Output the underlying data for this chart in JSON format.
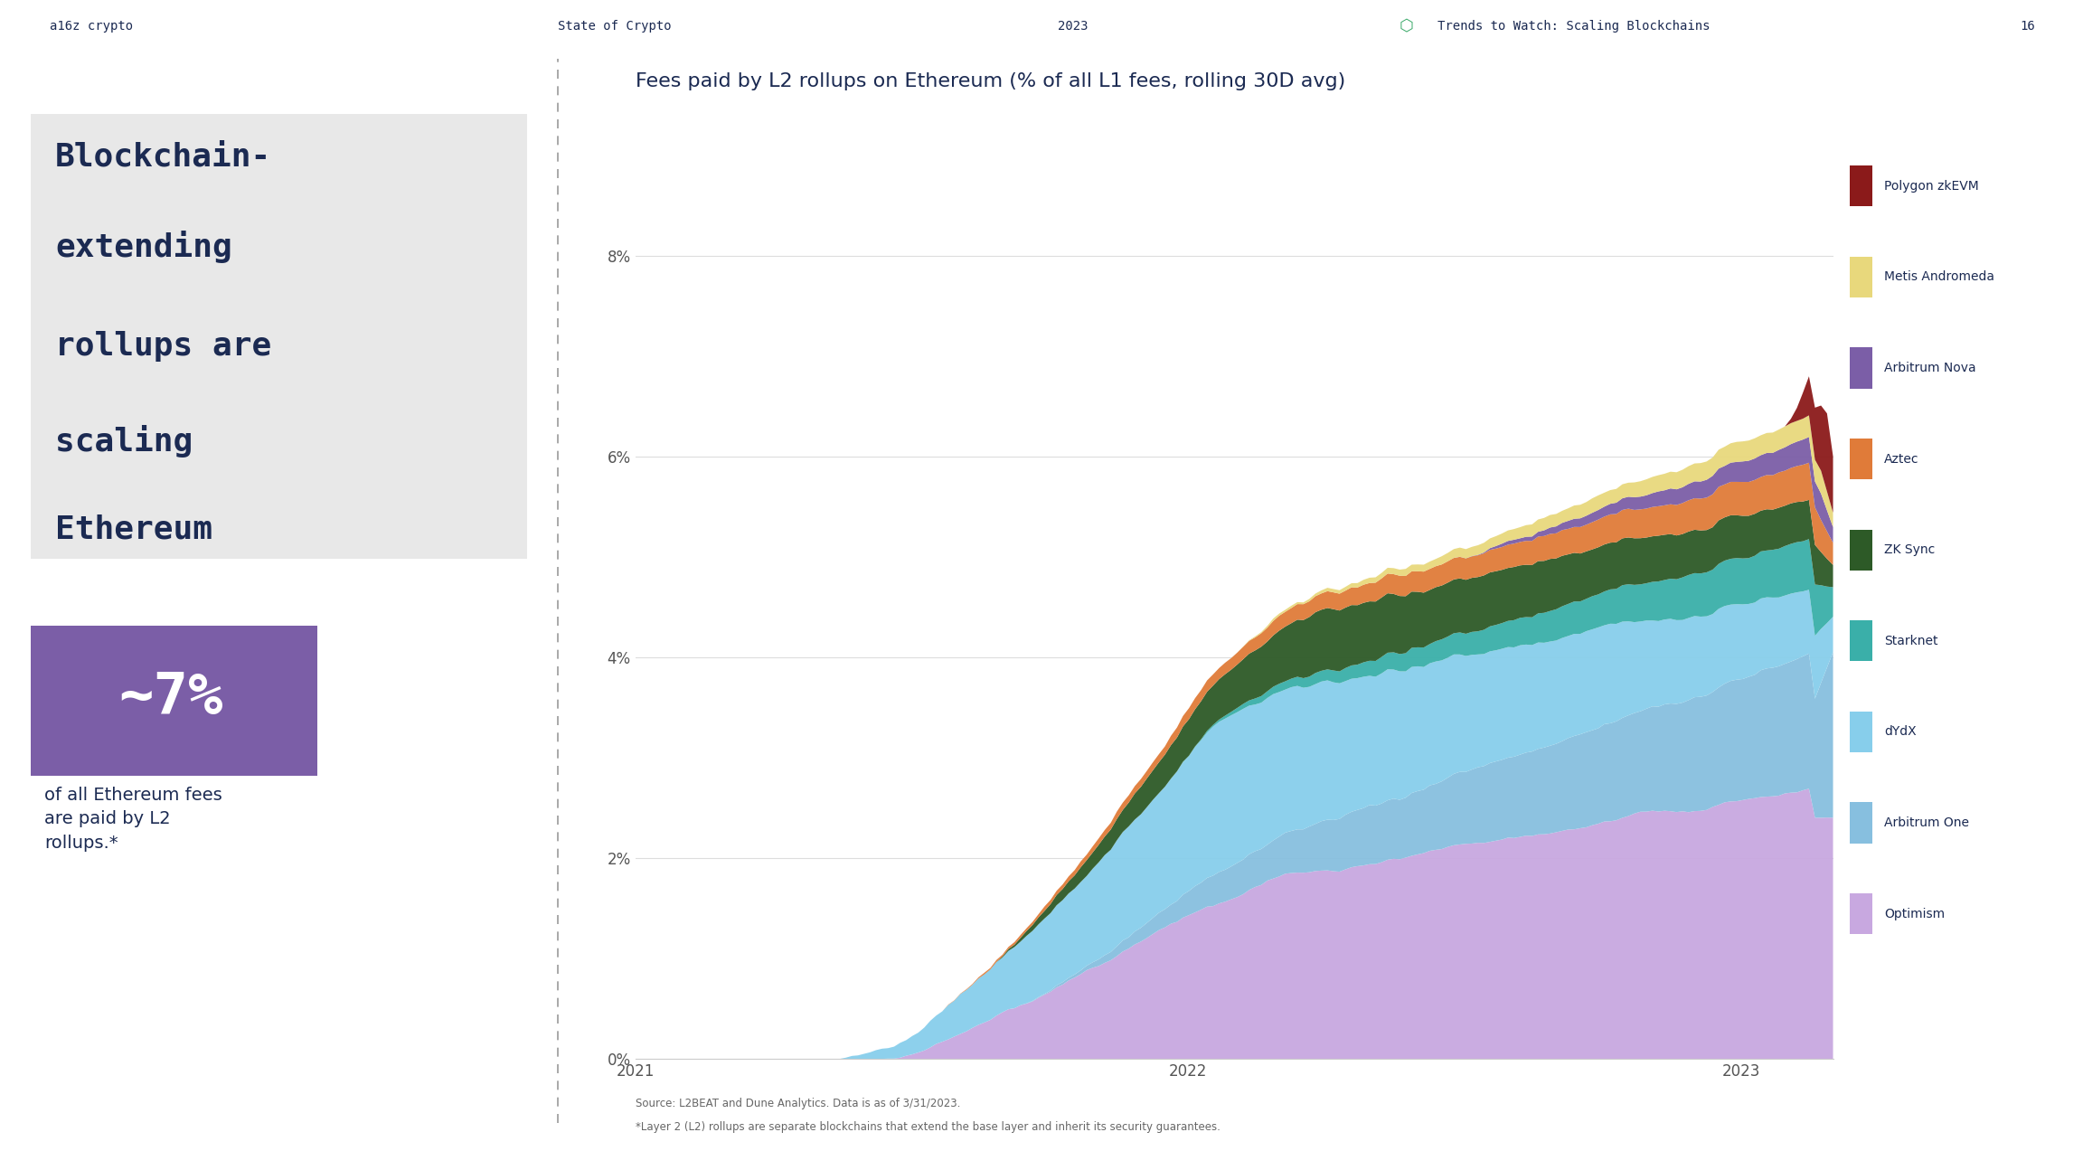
{
  "title": "Fees paid by L2 rollups on Ethereum (% of all L1 fees, rolling 30D avg)",
  "bg_color": "#ffffff",
  "left_panel_bg": "#ebebeb",
  "title_box_bg": "#e8e8e8",
  "chart_bg": "#ffffff",
  "dark_blue": "#1b2a52",
  "header_text": [
    "a16z crypto",
    "State of Crypto",
    "2023",
    "Trends to Watch: Scaling Blockchains",
    "16"
  ],
  "left_title_line1": "Blockchain-",
  "left_title_line2": "extending",
  "left_title_line3": "rollups are",
  "left_title_line4": "scaling",
  "left_title_line5": "Ethereum",
  "stat_box_color": "#7B5EA7",
  "stat_text": "~7%",
  "stat_subtext": "of all Ethereum fees\nare paid by L2\nrollups.*",
  "source_line1": "Source: L2BEAT and Dune Analytics. Data is as of 3/31/2023.",
  "source_line2": "*Layer 2 (L2) rollups are separate blockchains that extend the base layer and inherit its security guarantees.",
  "ytick_labels": [
    "0%",
    "2%",
    "4%",
    "6%",
    "8%"
  ],
  "ytick_values": [
    0,
    2,
    4,
    6,
    8
  ],
  "ylim": [
    0,
    9.5
  ],
  "xtick_labels": [
    "2021",
    "2022",
    "2023"
  ],
  "legend_labels": [
    "Polygon zkEVM",
    "Metis Andromeda",
    "Arbitrum Nova",
    "Aztec",
    "ZK Sync",
    "Starknet",
    "dYdX",
    "Arbitrum One",
    "Optimism"
  ],
  "legend_colors": [
    "#8B1A1A",
    "#E8D87C",
    "#7B5EA7",
    "#E07B39",
    "#2D5A27",
    "#3AAFA9",
    "#87CEEB",
    "#87BFDF",
    "#C8A8E0"
  ],
  "grid_color": "#dddddd",
  "separator_color": "#999999"
}
